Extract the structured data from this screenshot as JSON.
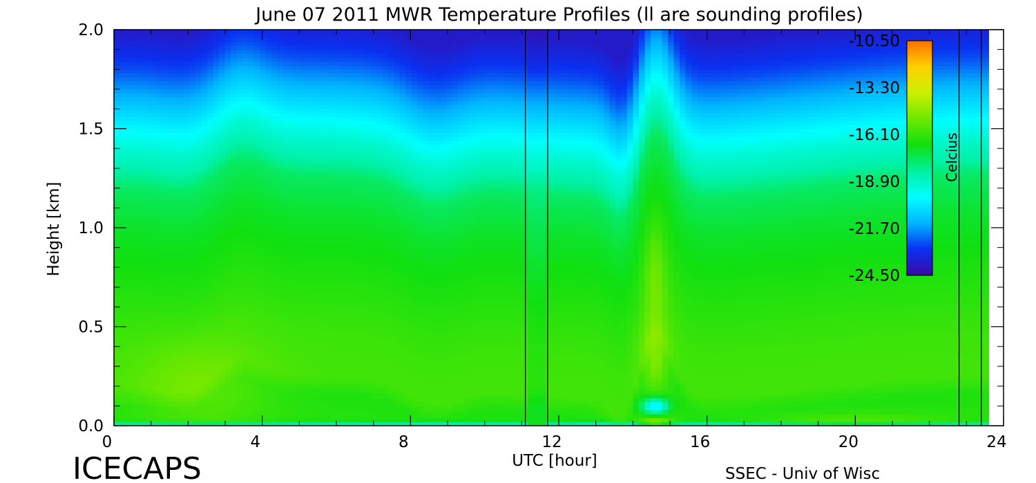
{
  "chart_data": {
    "type": "heatmap",
    "title": "June 07 2011 MWR Temperature Profiles (ll are sounding profiles)",
    "xlabel": "UTC [hour]",
    "ylabel": "Height [km]",
    "xlim": [
      0,
      24
    ],
    "ylim": [
      0,
      2.0
    ],
    "x_ticks": [
      "0",
      "4",
      "8",
      "12",
      "16",
      "20",
      "24"
    ],
    "y_ticks": [
      "0.0",
      "0.5",
      "1.0",
      "1.5",
      "2.0"
    ],
    "colorbar": {
      "label": "Celcius",
      "range": [
        -24.5,
        -10.5
      ],
      "ticks": [
        "-10.50",
        "-13.30",
        "-16.10",
        "-18.90",
        "-21.70",
        "-24.50"
      ]
    },
    "data_end_hour": 23.6,
    "gap_hours": [
      11.1,
      11.7
    ],
    "sounding_hours": [
      11.1,
      11.7,
      22.8,
      23.4
    ],
    "temperature_profile": {
      "heights_km": [
        0.0,
        0.1,
        0.2,
        0.4,
        0.6,
        1.0,
        1.2,
        1.3,
        1.4,
        1.6,
        1.8,
        2.0
      ],
      "temps_c": [
        -16.4,
        -16.5,
        -15.9,
        -16.0,
        -16.3,
        -17.0,
        -17.6,
        -18.5,
        -19.1,
        -20.8,
        -22.6,
        -23.8
      ]
    },
    "features": [
      {
        "hour": 14.6,
        "height_km": 0.35,
        "temp_c": -14.9
      },
      {
        "hour": 14.6,
        "height_km": 0.0,
        "temp_c": -13.5
      },
      {
        "hour": 2.3,
        "height_km": 0.2,
        "temp_c": -15.3
      }
    ]
  },
  "footer": {
    "project": "ICECAPS",
    "credit": "SSEC - Univ of Wisc"
  },
  "colors": {
    "scale": [
      "#3a0aa8",
      "#0a30f0",
      "#00b4ff",
      "#00ffff",
      "#00f0a0",
      "#10e010",
      "#6ee800",
      "#ccf000",
      "#ffd000",
      "#ff7000"
    ]
  }
}
